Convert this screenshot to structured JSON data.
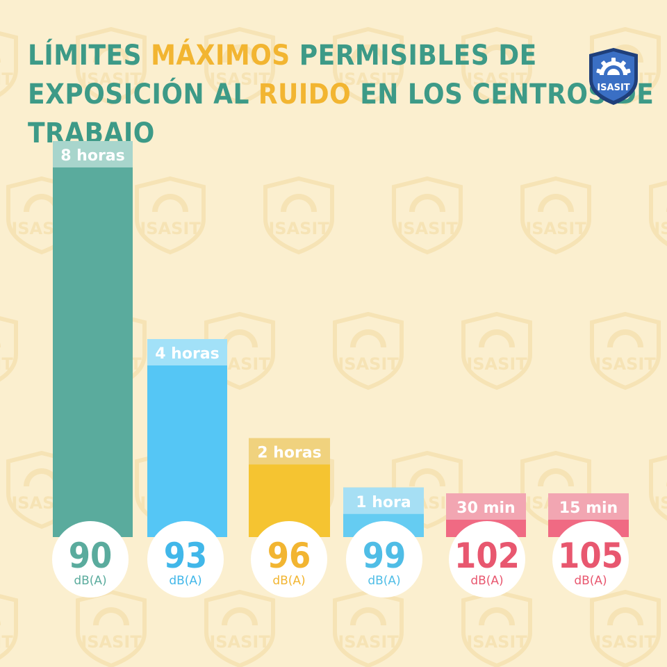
{
  "title": {
    "line1": [
      {
        "text": "LÍMITES ",
        "highlight": false
      },
      {
        "text": "MÁXIMOS",
        "highlight": true
      },
      {
        "text": " PERMISIBLES DE",
        "highlight": false
      }
    ],
    "line2": [
      {
        "text": "EXPOSICIÓN AL ",
        "highlight": false
      },
      {
        "text": "RUIDO",
        "highlight": true
      },
      {
        "text": " EN LOS CENTROS DE TRABAJO",
        "highlight": false
      }
    ]
  },
  "logo": {
    "text": "ISASIT",
    "icon": "gear-shield-logo-icon"
  },
  "watermark_text": "ISASIT",
  "colors": {
    "background": "#fbefcf",
    "title": "#3d9a87",
    "highlight": "#f2b531",
    "watermark": "#f6e3b5",
    "logo_dark": "#1f3f7a",
    "logo_light": "#3a6fc4"
  },
  "chart_data": {
    "type": "bar",
    "categories": [
      "90",
      "93",
      "96",
      "99",
      "102",
      "105"
    ],
    "unit": "dB(A)",
    "values": [
      8,
      4,
      2,
      1,
      0.5,
      0.25
    ],
    "value_unit": "horas",
    "bar_labels": [
      "8 horas",
      "4 horas",
      "2 horas",
      "1 hora",
      "30 min",
      "15 min"
    ],
    "colors": [
      "#5aab9d",
      "#55c6f5",
      "#f5c431",
      "#65ccf2",
      "#f06a83",
      "#f06a83"
    ],
    "label_colors": [
      "#a8d5cc",
      "#a2e1f8",
      "#f0d27e",
      "#a6dff4",
      "#f2a6b2",
      "#f2a6b2"
    ],
    "number_colors": [
      "#5aab9d",
      "#41b7e9",
      "#f2b531",
      "#4fbde6",
      "#e8576f",
      "#e8576f"
    ],
    "grid": false,
    "legend": "none"
  }
}
